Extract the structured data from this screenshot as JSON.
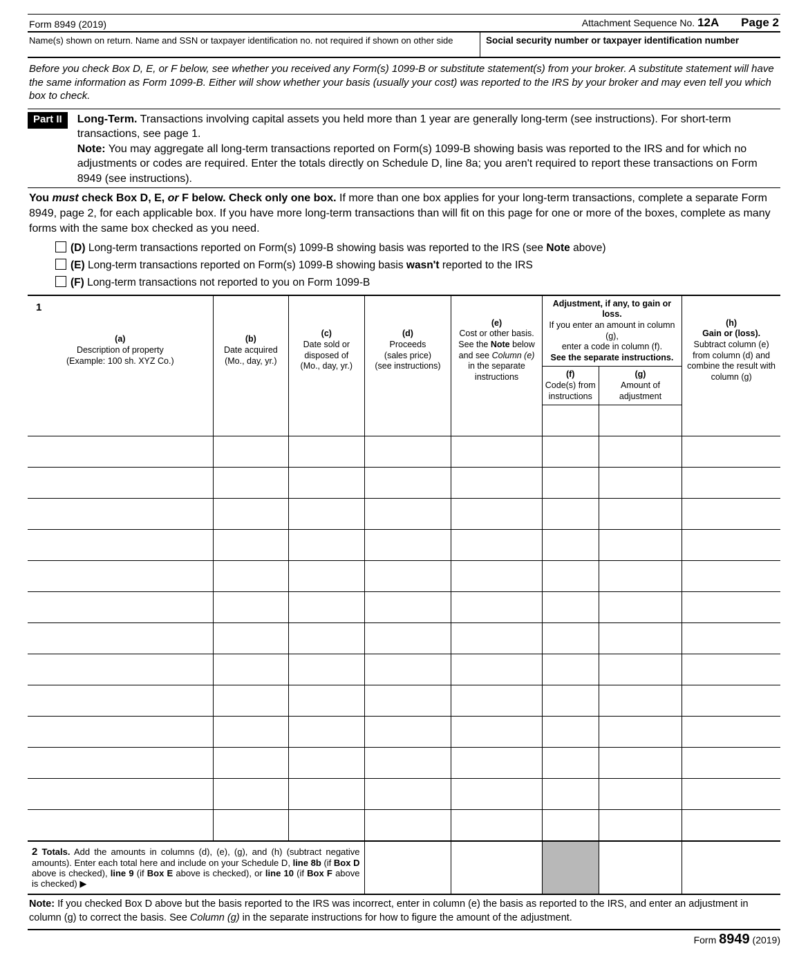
{
  "header": {
    "form_title": "Form 8949 (2019)",
    "attachment_label": "Attachment Sequence No.",
    "attachment_no": "12A",
    "page_label": "Page",
    "page_no": "2"
  },
  "name_row": {
    "left": "Name(s) shown on return. Name and SSN or taxpayer identification no. not required if shown on other side",
    "right": "Social security number or taxpayer identification number"
  },
  "before_para": "Before you check Box D, E, or F below, see whether you received any Form(s) 1099-B or substitute statement(s) from your broker. A substitute statement will have the same information as Form 1099-B. Either will show whether your basis (usually your cost) was reported to the IRS by your broker and may even tell you which box to check.",
  "part": {
    "label": "Part II",
    "title_bold": "Long-Term.",
    "title_rest": " Transactions involving capital assets you held more than 1 year are generally long-term (see instructions). For short-term transactions, see page 1.",
    "note_bold": "Note:",
    "note_rest": " You may aggregate all long-term transactions reported on Form(s) 1099-B showing basis was reported to the IRS and for which no adjustments or codes are required. Enter the totals directly on Schedule D, line 8a; you aren't required to report these transactions on Form 8949 (see instructions)."
  },
  "must": {
    "pre": "You ",
    "must": "must",
    "mid": " check Box D, E, ",
    "or": "or",
    "post": " F below. Check only one box.",
    "rest": " If more than one box applies for your long-term transactions, complete a separate Form 8949, page 2, for each applicable box. If you have more long-term transactions than will fit on this page for one or more of the boxes, complete as many forms with the same box checked as you need."
  },
  "checks": {
    "d_label": "(D)",
    "d_text": " Long-term transactions reported on Form(s) 1099-B showing basis was reported to the IRS (see ",
    "d_note": "Note",
    "d_after": " above)",
    "e_label": "(E)",
    "e_text1": " Long-term transactions reported on Form(s) 1099-B showing basis ",
    "e_wasnt": "wasn't",
    "e_text2": " reported to the IRS",
    "f_label": "(F)",
    "f_text": " Long-term transactions not reported to you on Form 1099-B"
  },
  "cols": {
    "one": "1",
    "a1": "(a)",
    "a2": "Description of property",
    "a3": "(Example: 100 sh. XYZ Co.)",
    "b1": "(b)",
    "b2": "Date acquired",
    "b3": "(Mo., day, yr.)",
    "c1": "(c)",
    "c2": "Date sold or disposed of",
    "c3": "(Mo., day, yr.)",
    "d1": "(d)",
    "d2": "Proceeds",
    "d3": "(sales price)",
    "d4": "(see instructions)",
    "e1": "(e)",
    "e2": "Cost or other basis.",
    "e3": "See the ",
    "e3b": "Note",
    "e3c": " below",
    "e4a": "and see ",
    "e4b": "Column (e)",
    "e5": "in the separate instructions",
    "adj1": "Adjustment, if any, to gain or loss.",
    "adj2": "If you enter an amount in column (g),",
    "adj3": "enter a code in column (f).",
    "adj4": "See the separate instructions.",
    "f1": "(f)",
    "f2": "Code(s) from instructions",
    "g1": "(g)",
    "g2": "Amount of adjustment",
    "h1": "(h)",
    "h2": "Gain or (loss).",
    "h3": "Subtract column (e)",
    "h4": "from column (d) and combine the result with column (g)"
  },
  "totals": {
    "num": "2",
    "bold1": "Totals.",
    "text1": " Add the amounts in columns (d), (e), (g), and (h) (subtract negative amounts). Enter each total here and include on your Schedule D, ",
    "b2": "line 8b",
    "t2": " (if ",
    "b3": "Box D",
    "t3": " above is checked), ",
    "b4": "line 9",
    "t4": " (if ",
    "b5": "Box E",
    "t5": " above is checked), or ",
    "b6": "line 10",
    "t6": " (if ",
    "b7": "Box F",
    "t7": " above is checked) ▶"
  },
  "note": {
    "bold": "Note:",
    "text1": " If you checked Box D above but the basis reported to the IRS was incorrect, enter in column (e) the basis as reported to the IRS, and enter an adjustment in column (g) to correct the basis. See ",
    "ital": "Column (g)",
    "text2": " in the separate instructions for how to figure the amount of the adjustment."
  },
  "footer": {
    "pre": "Form ",
    "num": "8949",
    "post": " (2019)"
  },
  "data_rows": 14
}
